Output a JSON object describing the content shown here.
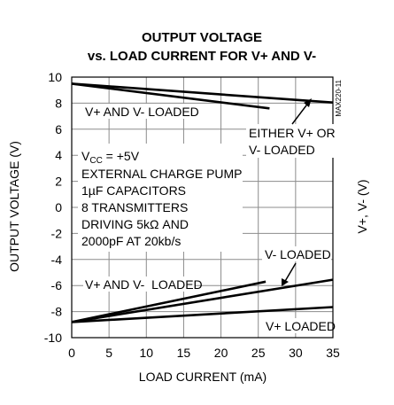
{
  "chart_data": {
    "type": "line",
    "title_line1": "OUTPUT VOLTAGE",
    "title_line2": "vs. LOAD CURRENT FOR V+ AND V-",
    "xlabel": "LOAD CURRENT (mA)",
    "ylabel": "OUTPUT VOLTAGE (V)",
    "ylabel_right": "V+, V- (V)",
    "figure_code": "MAX220-11",
    "xlim": [
      0,
      35
    ],
    "ylim": [
      -10,
      10
    ],
    "x_ticks": [
      0,
      5,
      10,
      15,
      20,
      25,
      30,
      35
    ],
    "y_ticks": [
      10,
      8,
      6,
      4,
      2,
      0,
      -2,
      -4,
      -6,
      -8,
      -10
    ],
    "grid": true,
    "conditions": {
      "vcc_main": "V",
      "vcc_sub": "CC",
      "vcc_rest": " = +5V",
      "lines": [
        "EXTERNAL CHARGE PUMP",
        "1µF CAPACITORS",
        "8 TRANSMITTERS",
        "DRIVING 5kΩ AND",
        "2000pF AT 20kb/s"
      ]
    },
    "series": [
      {
        "name": "V+ AND V- LOADED",
        "x": [
          0,
          26.5
        ],
        "y": [
          9.5,
          7.6
        ]
      },
      {
        "name": "EITHER V+ OR V- LOADED",
        "x": [
          0,
          35
        ],
        "y": [
          9.5,
          8.05
        ]
      },
      {
        "name": "V+ AND V- LOADED",
        "x": [
          0,
          26
        ],
        "y": [
          -8.8,
          -5.7
        ]
      },
      {
        "name": "V- LOADED",
        "x": [
          0,
          35
        ],
        "y": [
          -8.8,
          -5.55
        ]
      },
      {
        "name": "V+ LOADED",
        "x": [
          0,
          35
        ],
        "y": [
          -8.8,
          -7.65
        ]
      }
    ],
    "annotations": {
      "upper_both": "V+ AND V- LOADED",
      "either_line1": "EITHER V+ OR",
      "either_line2": "V- LOADED",
      "lower_both": "V+ AND V-  LOADED",
      "v_minus": "V- LOADED",
      "v_plus": "V+ LOADED"
    }
  }
}
